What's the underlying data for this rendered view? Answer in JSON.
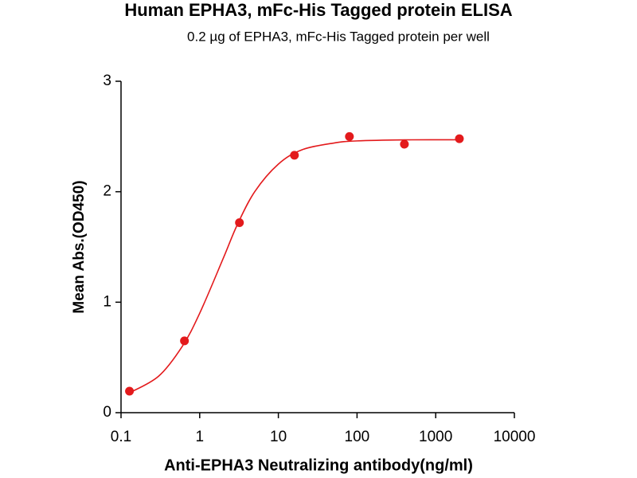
{
  "chart_data": {
    "type": "scatter",
    "title": "Human EPHA3, mFc-His Tagged protein ELISA",
    "subtitle": "0.2 µg of EPHA3, mFc-His Tagged protein per well",
    "x_label": "Anti-EPHA3 Neutralizing antibody(ng/ml)",
    "y_label": "Mean Abs.(OD450)",
    "x": [
      0.128,
      0.64,
      3.2,
      16,
      80,
      400,
      2000
    ],
    "values": [
      0.195,
      0.65,
      1.72,
      2.33,
      2.5,
      2.43,
      2.48
    ],
    "color": "#e31a1c",
    "curve": {
      "x": [
        0.128,
        0.3,
        0.6,
        1,
        2,
        3,
        5,
        10,
        20,
        50,
        100,
        500,
        2000
      ],
      "values": [
        0.18,
        0.33,
        0.6,
        0.9,
        1.4,
        1.7,
        2.0,
        2.25,
        2.38,
        2.44,
        2.46,
        2.47,
        2.47
      ]
    },
    "xscale": "log",
    "xlim": [
      0.1,
      10000
    ],
    "xticks": [
      0.1,
      1,
      10,
      100,
      1000,
      10000
    ],
    "ylim": [
      0,
      3
    ],
    "yticks": [
      0,
      1,
      2,
      3
    ]
  }
}
